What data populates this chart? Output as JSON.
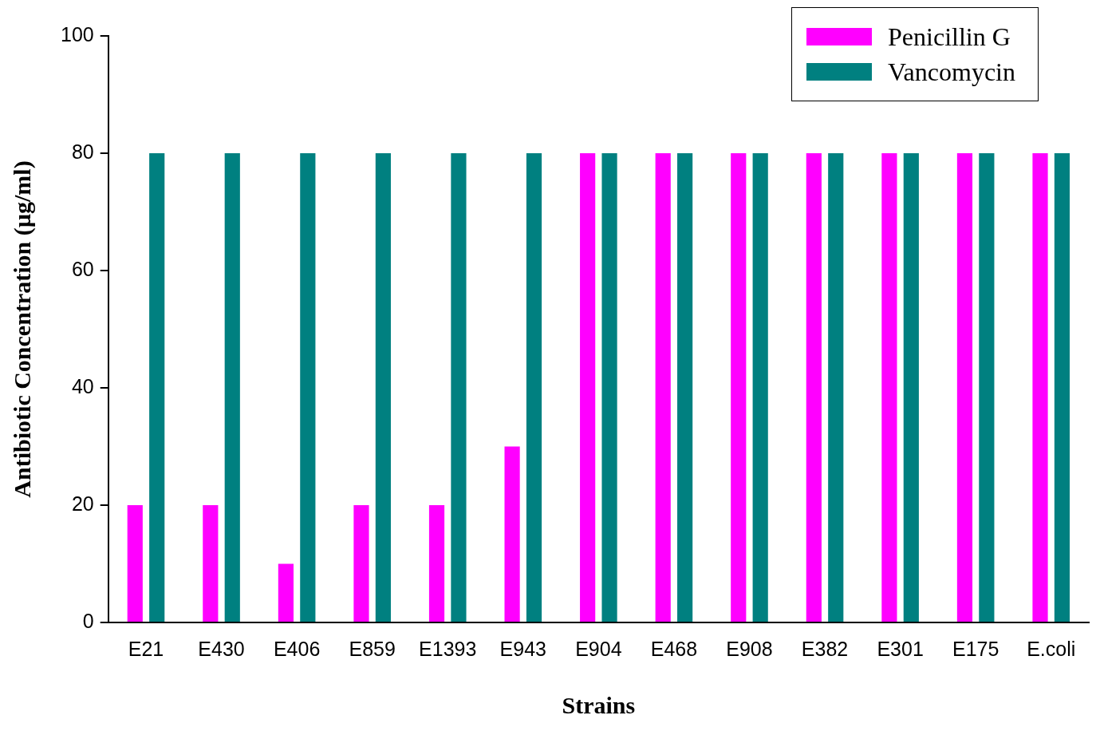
{
  "chart_data": {
    "type": "bar",
    "xlabel": "Strains",
    "ylabel": "Antibiotic Concentration (µg/ml)",
    "categories": [
      "E21",
      "E430",
      "E406",
      "E859",
      "E1393",
      "E943",
      "E904",
      "E468",
      "E908",
      "E382",
      "E301",
      "E175",
      "E.coli"
    ],
    "series": [
      {
        "name": "Penicillin G",
        "color": "#ff00ff",
        "values": [
          20,
          20,
          10,
          20,
          20,
          30,
          80,
          80,
          80,
          80,
          80,
          80,
          80
        ]
      },
      {
        "name": "Vancomycin",
        "color": "#008080",
        "values": [
          80,
          80,
          80,
          80,
          80,
          80,
          80,
          80,
          80,
          80,
          80,
          80,
          80
        ]
      }
    ],
    "ylim": [
      0,
      100
    ],
    "yticks": [
      0,
      20,
      40,
      60,
      80,
      100
    ],
    "grid": false,
    "legend": "top right"
  }
}
